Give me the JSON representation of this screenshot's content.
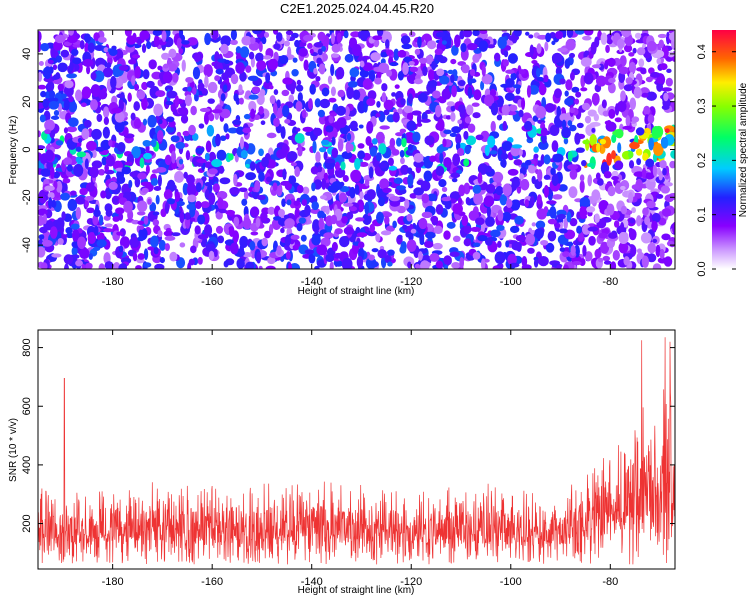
{
  "title": "C2E1.2025.024.04.45.R20",
  "chart_data": [
    {
      "type": "heatmap",
      "xlabel": "Height of straight line (km)",
      "ylabel": "Frequency (Hz)",
      "xlim": [
        -195,
        -67
      ],
      "ylim": [
        -50,
        50
      ],
      "xticks": [
        -180,
        -160,
        -140,
        -120,
        -100,
        -80
      ],
      "yticks": [
        -40,
        -20,
        0,
        20,
        40
      ],
      "colorbar": {
        "label": "Normalized spectral amplitude",
        "range": [
          0.0,
          0.44
        ],
        "ticks": [
          0.0,
          0.1,
          0.2,
          0.3,
          0.4
        ],
        "tick_labels": [
          "0.0",
          "0.1",
          "0.2",
          "0.3",
          "0.4"
        ],
        "colormap": "rainbow (white, violet, blue, cyan, green, yellow, red)"
      },
      "description_values": {
        "background_amplitude": 0.03,
        "strong_band_frequency_hz": 0,
        "strong_band_height_range_km": [
          -85,
          -67
        ],
        "strong_band_peak_amplitude": 0.44
      },
      "grid": false
    },
    {
      "type": "line",
      "xlabel": "Height of straight line (km)",
      "ylabel": "SNR (10 * v/v)",
      "xlim": [
        -195,
        -67
      ],
      "ylim": [
        45,
        860
      ],
      "xticks": [
        -180,
        -160,
        -140,
        -120,
        -100,
        -80
      ],
      "yticks": [
        200,
        400,
        600,
        800
      ],
      "series_color": "#ee3333",
      "envelope": {
        "height_km": [
          -195,
          -190,
          -185,
          -160,
          -140,
          -120,
          -100,
          -88,
          -85,
          -80,
          -75,
          -72,
          -70,
          -68,
          -67
        ],
        "snr_max": [
          340,
          320,
          330,
          340,
          345,
          330,
          330,
          330,
          400,
          480,
          560,
          620,
          640,
          720,
          650
        ],
        "snr_min": [
          60,
          60,
          60,
          60,
          60,
          60,
          60,
          60,
          60,
          60,
          60,
          60,
          60,
          60,
          60
        ]
      },
      "spikes": [
        {
          "height_km": -189.7,
          "snr": 695
        },
        {
          "height_km": -73.7,
          "snr": 825
        },
        {
          "height_km": -69.0,
          "snr": 835
        },
        {
          "height_km": -68.0,
          "snr": 820
        }
      ],
      "grid": false
    }
  ]
}
